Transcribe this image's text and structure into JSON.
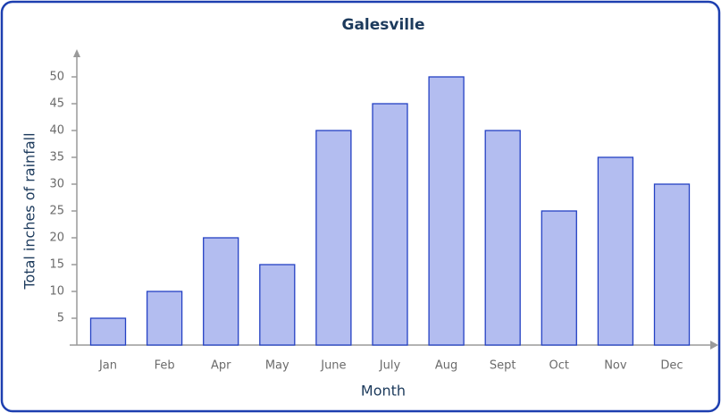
{
  "chart_data": {
    "type": "bar",
    "title": "Galesville",
    "x_label": "Month",
    "y_label": "Total inches of rainfall",
    "categories": [
      "Jan",
      "Feb",
      "Apr",
      "May",
      "June",
      "July",
      "Aug",
      "Sept",
      "Oct",
      "Nov",
      "Dec"
    ],
    "values": [
      5,
      10,
      20,
      15,
      40,
      45,
      50,
      40,
      25,
      35,
      30
    ],
    "color": "#b3bdf0",
    "edge_color": "#2441c4",
    "ylim": [
      0,
      55
    ],
    "yticks": [
      5,
      10,
      15,
      20,
      25,
      30,
      35,
      40,
      45,
      50
    ],
    "grid": false
  }
}
